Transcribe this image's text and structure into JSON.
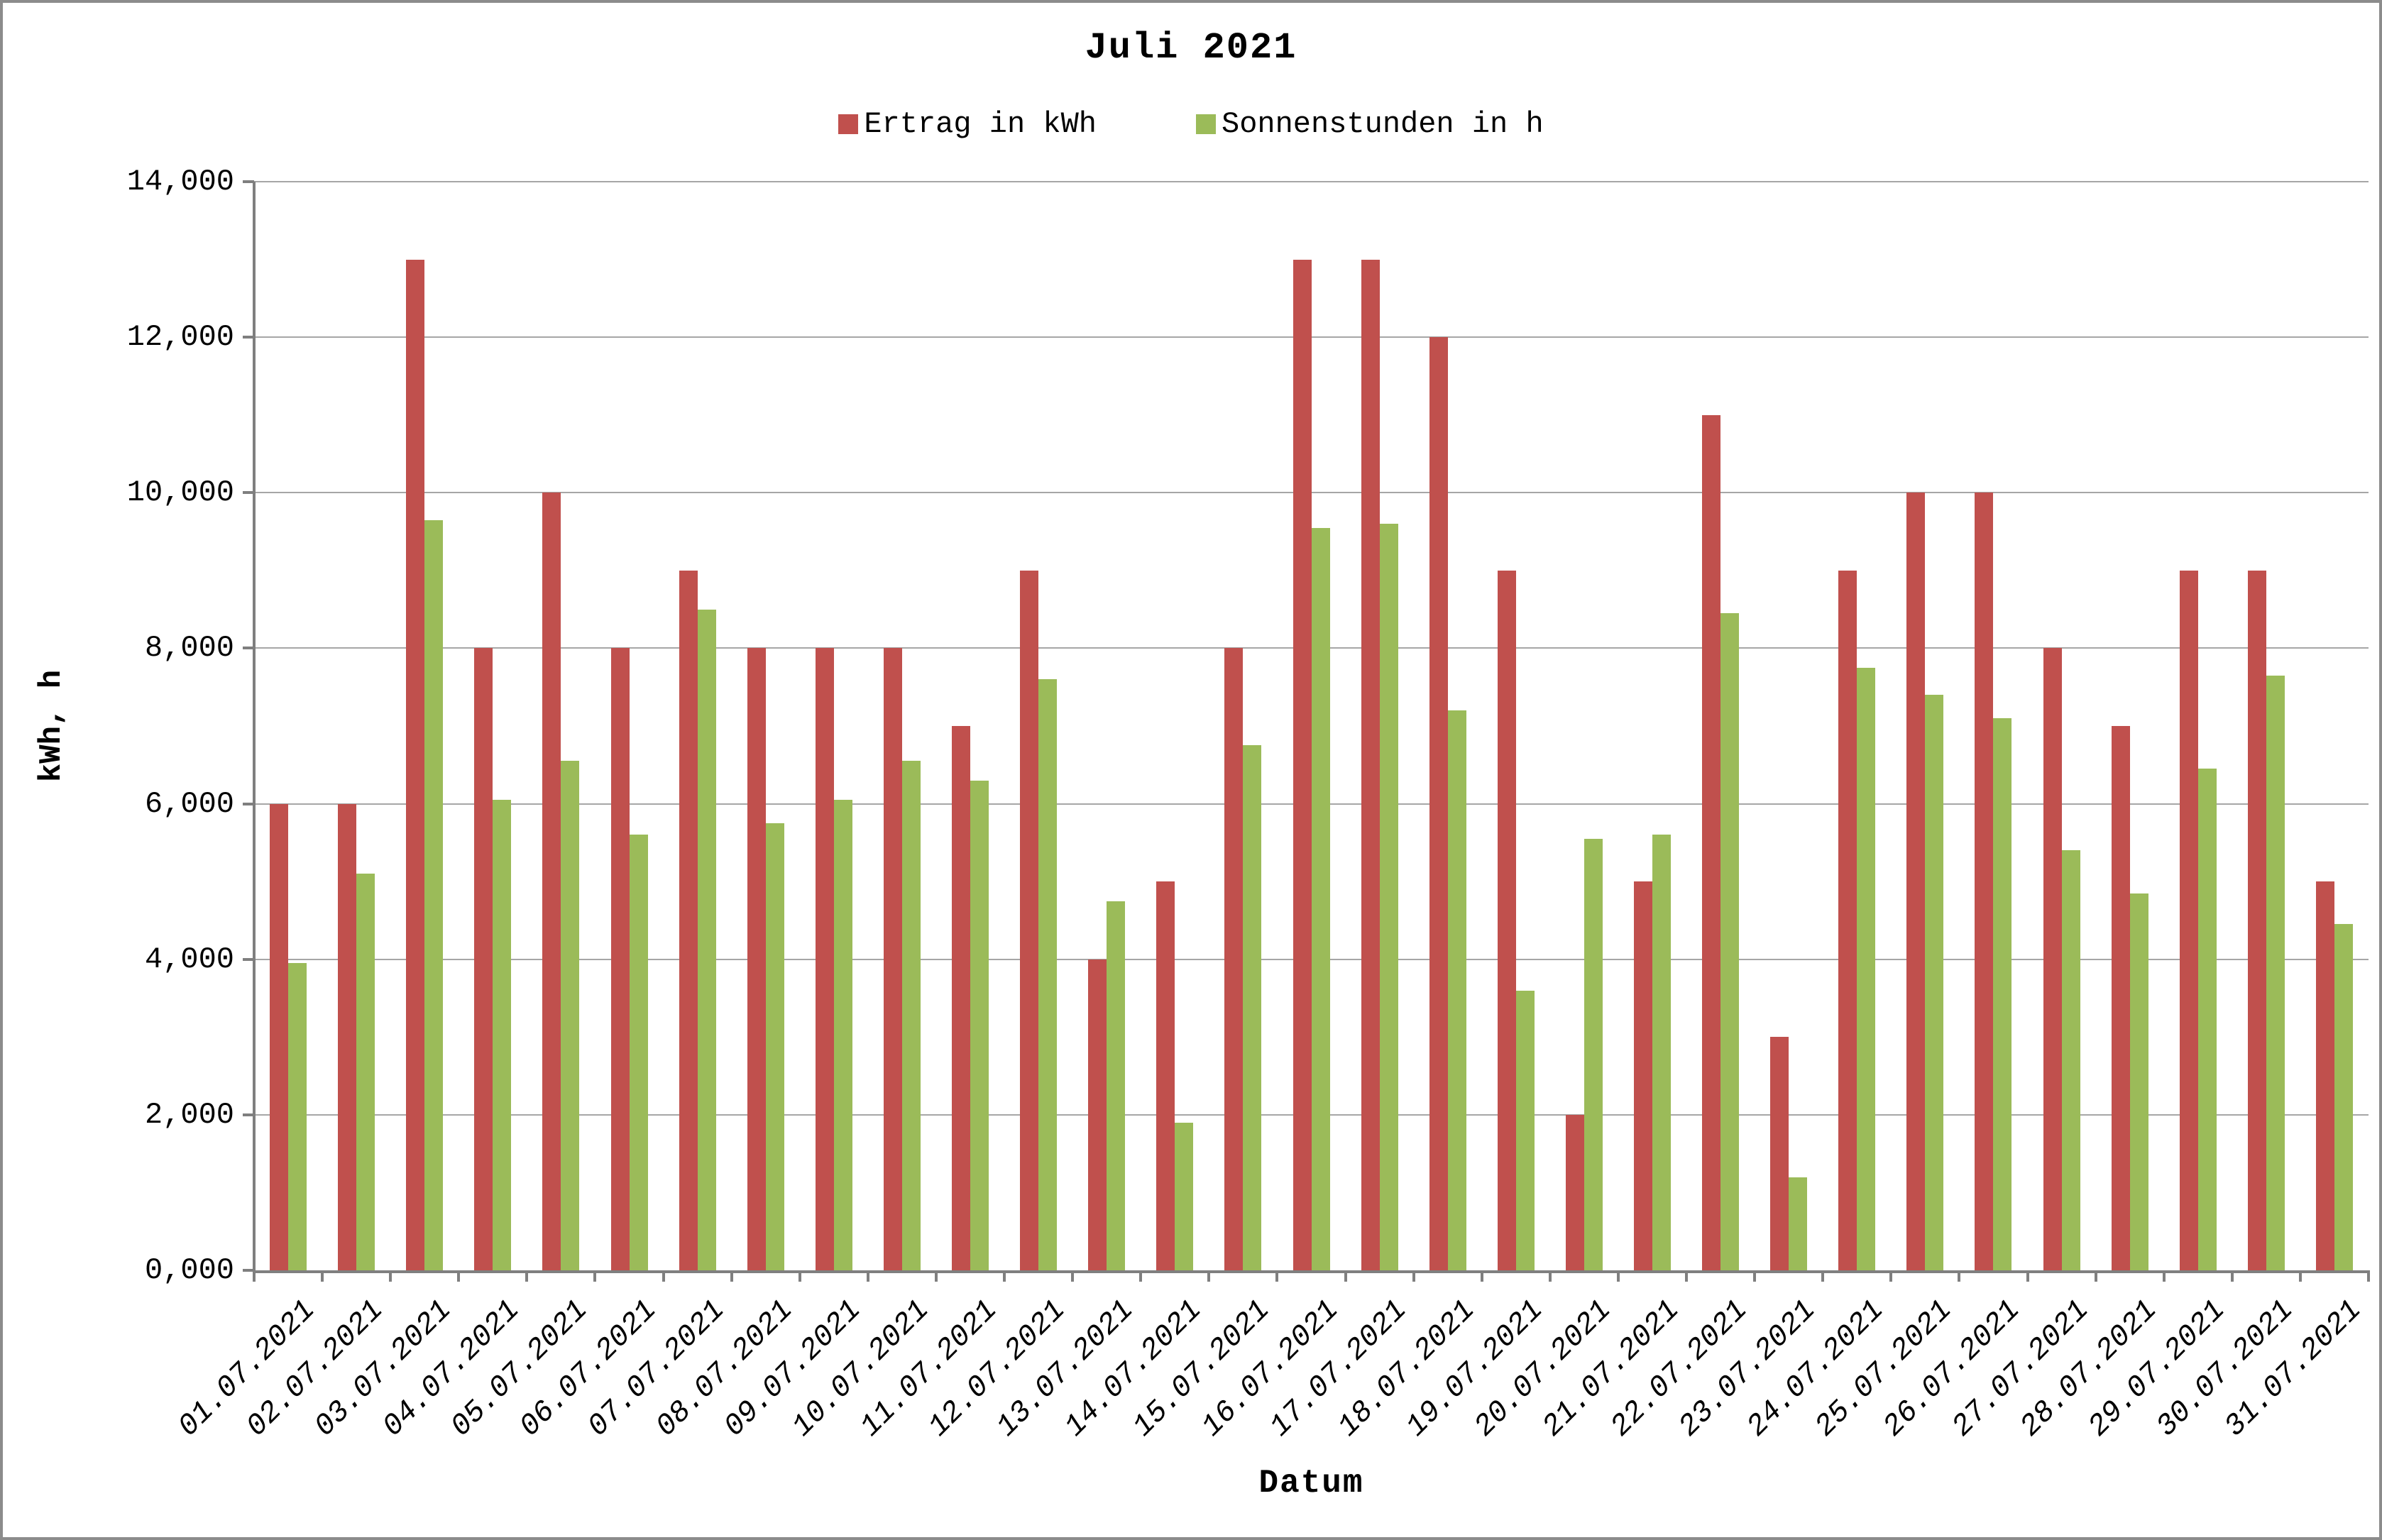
{
  "title": "Juli 2021",
  "legend": {
    "items": [
      {
        "label": "Ertrag in kWh",
        "color": "#C0504D",
        "swatch": "red-square-icon"
      },
      {
        "label": "Sonnenstunden in h",
        "color": "#9BBB59",
        "swatch": "green-square-icon"
      }
    ]
  },
  "colors": {
    "bar_red": "#C0504D",
    "bar_green": "#9BBB59",
    "gridline": "#A6A6A6",
    "axis": "#7F7F7F",
    "frame_border": "#8C8C8C",
    "background": "#FFFFFF",
    "text": "#000000"
  },
  "chart_data": {
    "type": "bar",
    "title": "Juli 2021",
    "xlabel": "Datum",
    "ylabel": "kWh, h",
    "ylim": [
      0,
      14000
    ],
    "y_tick_step": 2000,
    "y_tick_labels": [
      "0,000",
      "2,000",
      "4,000",
      "6,000",
      "8,000",
      "10,000",
      "12,000",
      "14,000"
    ],
    "grid": true,
    "legend_position": "top-center",
    "categories": [
      "01.07.2021",
      "02.07.2021",
      "03.07.2021",
      "04.07.2021",
      "05.07.2021",
      "06.07.2021",
      "07.07.2021",
      "08.07.2021",
      "09.07.2021",
      "10.07.2021",
      "11.07.2021",
      "12.07.2021",
      "13.07.2021",
      "14.07.2021",
      "15.07.2021",
      "16.07.2021",
      "17.07.2021",
      "18.07.2021",
      "19.07.2021",
      "20.07.2021",
      "21.07.2021",
      "22.07.2021",
      "23.07.2021",
      "24.07.2021",
      "25.07.2021",
      "26.07.2021",
      "27.07.2021",
      "28.07.2021",
      "29.07.2021",
      "30.07.2021",
      "31.07.2021"
    ],
    "series": [
      {
        "name": "Ertrag in kWh",
        "color": "#C0504D",
        "values": [
          6000,
          6000,
          13000,
          8000,
          10000,
          8000,
          9000,
          8000,
          8000,
          8000,
          7000,
          9000,
          4000,
          5000,
          8000,
          13000,
          13000,
          12000,
          9000,
          2000,
          5000,
          11000,
          3000,
          9000,
          10000,
          10000,
          8000,
          7000,
          9000,
          9000,
          5000
        ]
      },
      {
        "name": "Sonnenstunden in h",
        "color": "#9BBB59",
        "values": [
          3950,
          5100,
          9650,
          6050,
          6550,
          5600,
          8500,
          5750,
          6050,
          6550,
          6300,
          7600,
          4750,
          1900,
          6750,
          9550,
          9600,
          7200,
          3600,
          5550,
          5600,
          8450,
          1200,
          7750,
          7400,
          7100,
          5400,
          4850,
          6450,
          7650,
          4450
        ]
      }
    ]
  }
}
